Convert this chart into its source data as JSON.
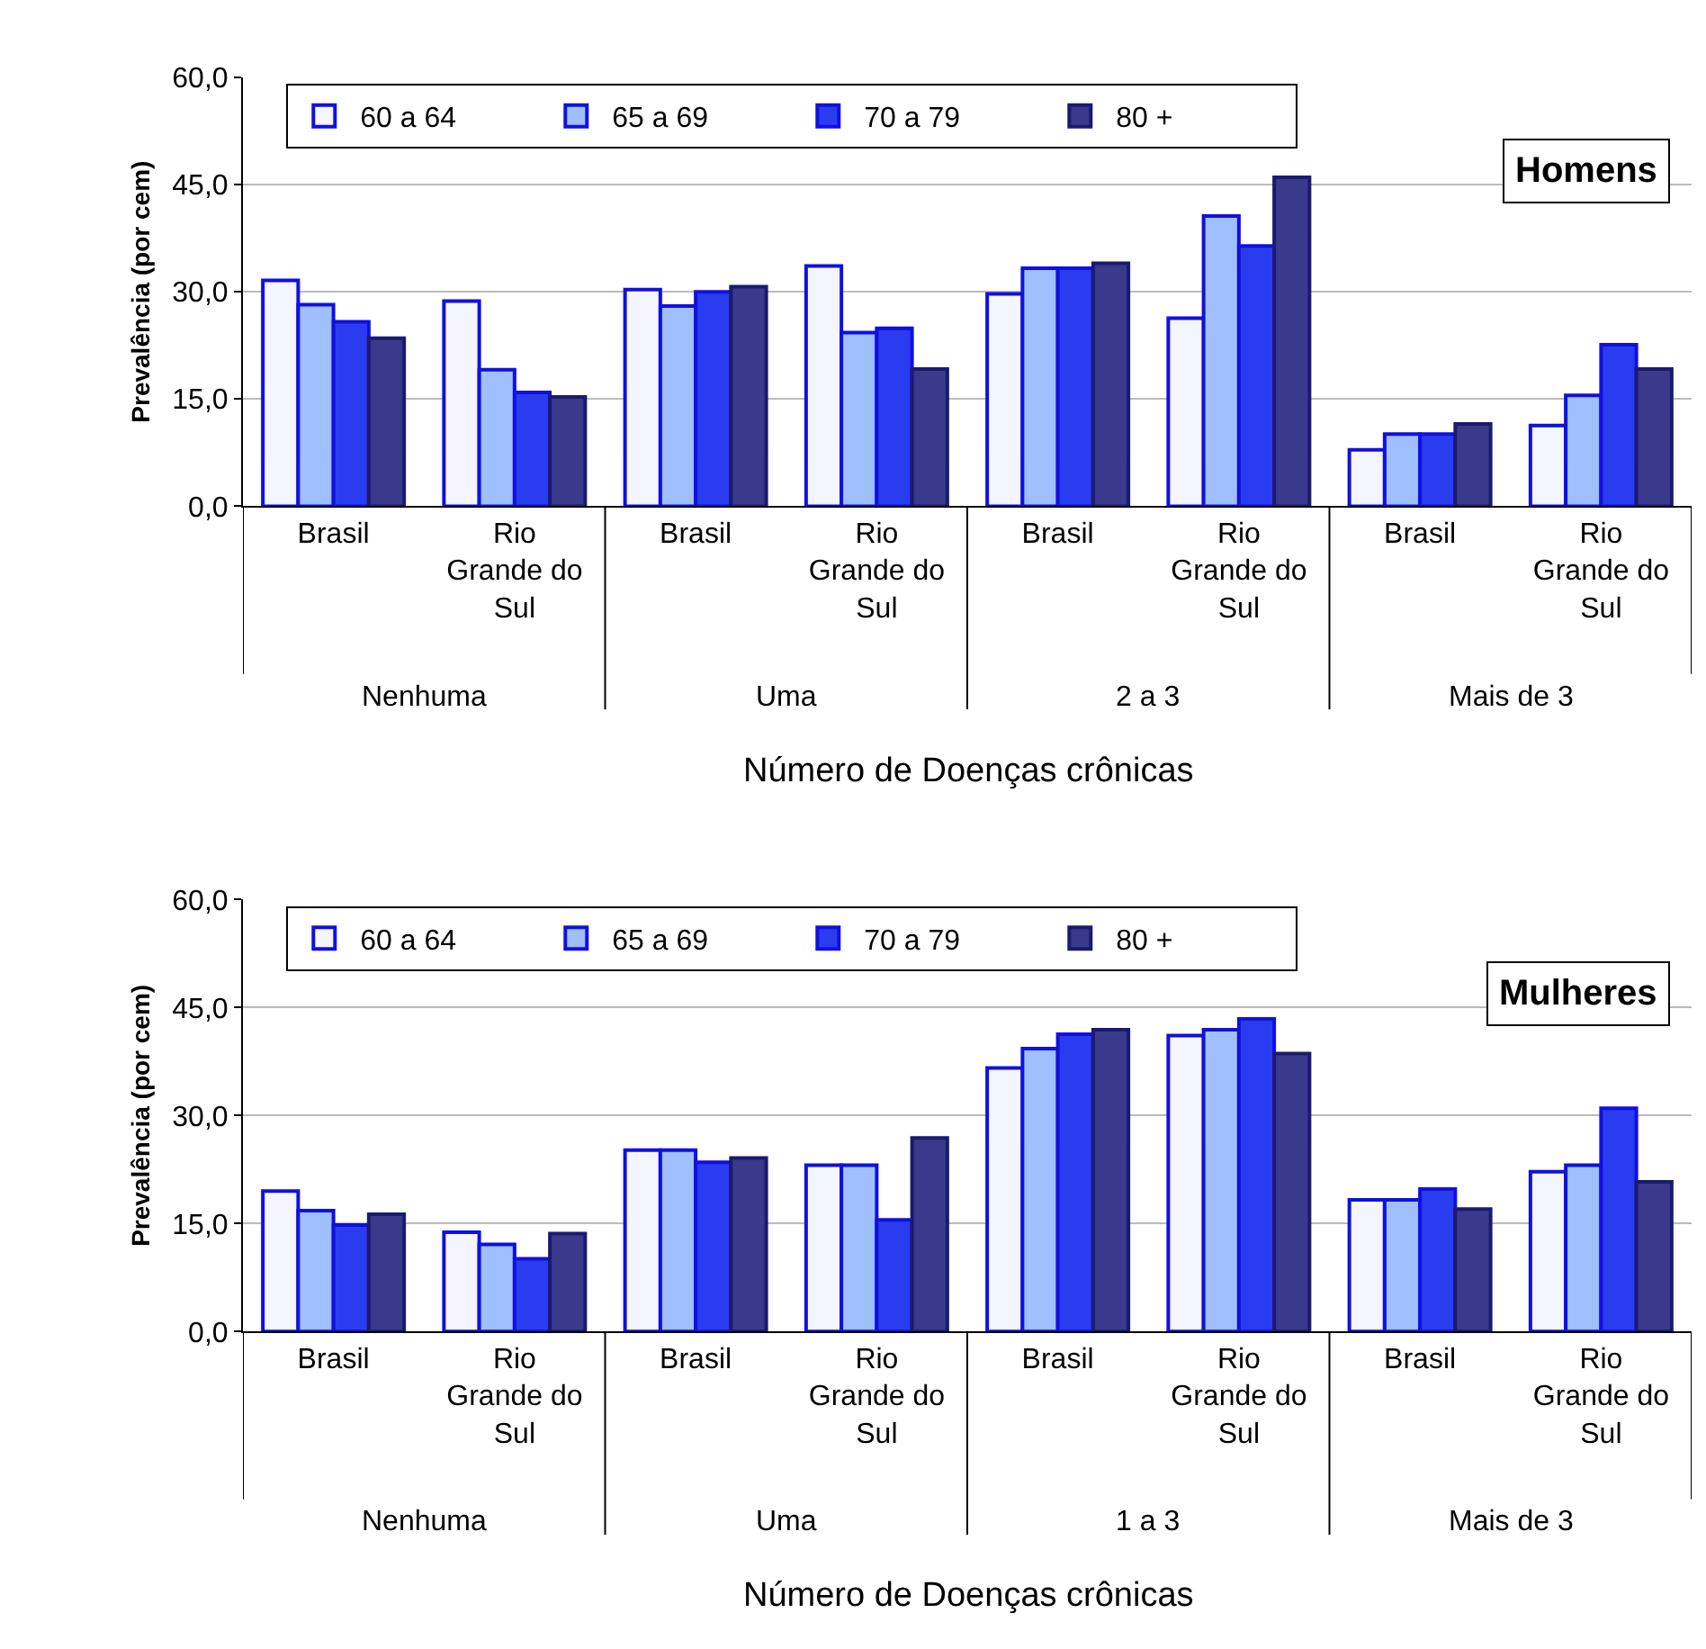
{
  "chart_data": [
    {
      "type": "bar",
      "title": "Homens",
      "xlabel": "Número de Doenças crônicas",
      "ylabel": "Prevalência (por cem)",
      "categories": [
        "Brasil",
        "Rio Grande do Sul",
        "Brasil",
        "Rio Grande do Sul",
        "Brasil",
        "Rio Grande do Sul",
        "Brasil",
        "Rio Grande do Sul"
      ],
      "annotations": [
        "Nenhuma",
        "Uma",
        "2 a 3",
        "Mais de 3"
      ],
      "series": [
        {
          "name": "60 a 64",
          "color": "#f4f6ff",
          "values": [
            31.6,
            28.7,
            30.3,
            33.6,
            29.7,
            26.3,
            7.9,
            11.3
          ]
        },
        {
          "name": "65 a 69",
          "color": "#9fbfff",
          "values": [
            28.2,
            19.1,
            28.0,
            24.3,
            33.3,
            40.6,
            10.1,
            15.5
          ]
        },
        {
          "name": "70 a 79",
          "color": "#2a3cf0",
          "values": [
            25.8,
            15.9,
            30.0,
            24.9,
            33.3,
            36.4,
            10.1,
            22.6
          ]
        },
        {
          "name": "80 +",
          "color": "#3a3a8c",
          "values": [
            23.5,
            15.3,
            30.7,
            19.2,
            34.0,
            46.0,
            11.5,
            19.2
          ]
        }
      ],
      "ylim": [
        0,
        60
      ],
      "yticks": [
        {
          "value": 0,
          "label": "0,0"
        },
        {
          "value": 15,
          "label": "15,0"
        },
        {
          "value": 30,
          "label": "30,0"
        },
        {
          "value": 45,
          "label": "45,0"
        },
        {
          "value": 60,
          "label": "60,0"
        }
      ],
      "grid": "y",
      "legend": "top left"
    },
    {
      "type": "bar",
      "title": "Mulheres",
      "xlabel": "Número de Doenças crônicas",
      "ylabel": "Prevalência (por cem)",
      "categories": [
        "Brasil",
        "Rio Grande do Sul",
        "Brasil",
        "Rio Grande do Sul",
        "Brasil",
        "Rio Grande do Sul",
        "Brasil",
        "Rio Grande do Sul"
      ],
      "annotations": [
        "Nenhuma",
        "Uma",
        "1 a 3",
        "Mais de 3"
      ],
      "series": [
        {
          "name": "60 a 64",
          "color": "#f4f6ff",
          "values": [
            19.5,
            13.8,
            25.2,
            23.1,
            36.6,
            41.1,
            18.3,
            22.2
          ]
        },
        {
          "name": "65 a 69",
          "color": "#9fbfff",
          "values": [
            16.8,
            12.1,
            25.2,
            23.1,
            39.3,
            41.9,
            18.3,
            23.1
          ]
        },
        {
          "name": "70 a 79",
          "color": "#2a3cf0",
          "values": [
            14.8,
            10.1,
            23.5,
            15.5,
            41.3,
            43.4,
            19.8,
            31.0
          ]
        },
        {
          "name": "80 +",
          "color": "#3a3a8c",
          "values": [
            16.3,
            13.6,
            24.1,
            26.9,
            41.9,
            38.6,
            17.0,
            20.8
          ]
        }
      ],
      "ylim": [
        0,
        60
      ],
      "yticks": [
        {
          "value": 0,
          "label": "0,0"
        },
        {
          "value": 15,
          "label": "15,0"
        },
        {
          "value": 30,
          "label": "30,0"
        },
        {
          "value": 45,
          "label": "45,0"
        },
        {
          "value": 60,
          "label": "60,0"
        }
      ],
      "grid": "y",
      "legend": "top left"
    }
  ]
}
